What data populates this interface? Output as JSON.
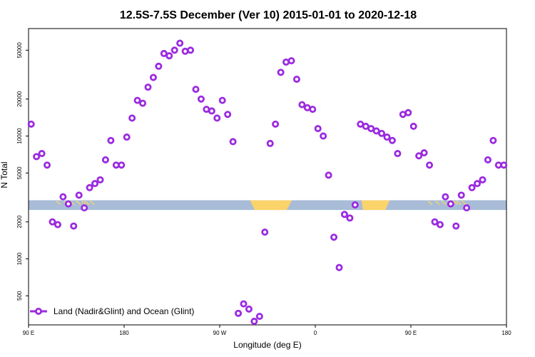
{
  "chart_data": {
    "type": "scatter",
    "title": "12.5S-7.5S December (Ver 10)   2015-01-01 to 2020-12-18",
    "xlabel": "Longitude (deg E)",
    "ylabel": "N Total",
    "x_ticks": [
      90,
      180,
      270,
      360,
      450,
      540
    ],
    "x_tick_labels": [
      "90 E",
      "180",
      "90 W",
      "0",
      "90 E",
      "180"
    ],
    "xlim": [
      90,
      540
    ],
    "y_scale": "log",
    "y_ticks": [
      500,
      1000,
      2000,
      5000,
      10000,
      20000,
      50000
    ],
    "y_tick_labels": [
      "500",
      "1000",
      "2000",
      "5000",
      "10000",
      "20000",
      "50000"
    ],
    "ylim": [
      290,
      75000
    ],
    "colors": {
      "series": "#9b2ae0",
      "ocean": "#a8bcd8",
      "land": "#fad36a"
    },
    "land_ocean_strip": {
      "ocean_y_range": [
        2500,
        3000
      ]
    },
    "legend": {
      "label": "Land (Nadir&Glint) and Ocean (Glint)",
      "position": "bottom-left"
    },
    "series": [
      {
        "name": "Land (Nadir&Glint) and Ocean (Glint)",
        "x": [
          92.5,
          97.5,
          102.5,
          107.5,
          112.5,
          117.5,
          122.5,
          127.5,
          132.5,
          137.5,
          142.5,
          147.5,
          152.5,
          157.5,
          162.5,
          167.5,
          172.5,
          177.5,
          182.5,
          187.5,
          192.5,
          197.5,
          202.5,
          207.5,
          212.5,
          217.5,
          222.5,
          227.5,
          232.5,
          237.5,
          242.5,
          247.5,
          252.5,
          257.5,
          262.5,
          267.5,
          272.5,
          277.5,
          282.5,
          287.5,
          292.5,
          297.5,
          302.5,
          307.5,
          312.5,
          317.5,
          322.5,
          327.5,
          332.5,
          337.5,
          342.5,
          347.5,
          352.5,
          357.5,
          362.5,
          367.5,
          372.5,
          377.5,
          382.5,
          387.5,
          392.5,
          397.5,
          402.5,
          407.5,
          412.5,
          417.5,
          422.5,
          427.5,
          432.5,
          437.5,
          442.5,
          447.5,
          452.5,
          457.5,
          462.5,
          467.5,
          472.5,
          477.5,
          482.5,
          487.5,
          492.5,
          497.5,
          502.5,
          507.5,
          512.5,
          517.5,
          522.5,
          527.5,
          532.5,
          537.5
        ],
        "y": [
          12500,
          6800,
          7200,
          5800,
          2000,
          1900,
          3200,
          2800,
          1850,
          3300,
          2600,
          3800,
          4100,
          4400,
          6400,
          9200,
          5800,
          5800,
          9800,
          14000,
          19500,
          18500,
          25000,
          30000,
          37000,
          47000,
          45000,
          50000,
          57000,
          49000,
          50000,
          24000,
          20000,
          16500,
          16000,
          14000,
          19500,
          15000,
          9000,
          360,
          430,
          390,
          310,
          340,
          1650,
          8700,
          12500,
          33000,
          40000,
          41000,
          29000,
          18000,
          17000,
          16500,
          11500,
          10000,
          4800,
          1500,
          850,
          2300,
          2150,
          2750,
          12500,
          12000,
          11500,
          11000,
          10500,
          9800,
          9200,
          7200,
          15000,
          15500,
          12000,
          6900,
          7300,
          5800,
          2000,
          1900,
          3200,
          2800,
          1850,
          3300,
          2600,
          3800,
          4100,
          4400,
          6400,
          9200,
          5800,
          5800
        ]
      }
    ]
  }
}
